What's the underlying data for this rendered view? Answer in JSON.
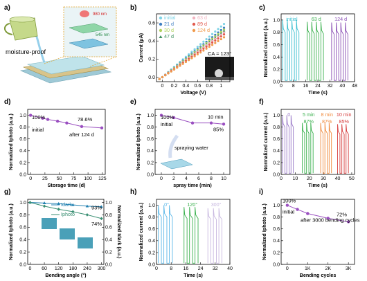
{
  "panel_a": {
    "label": "a)",
    "caption": "moisture-proof",
    "label_980": "980 nm",
    "label_545": "545 nm"
  },
  "chart_data": [
    {
      "id": "b",
      "label": "b)",
      "type": "line",
      "xlabel": "Voltage (V)",
      "ylabel": "Current (μA)",
      "xlim": [
        -0.1,
        1.15
      ],
      "ylim": [
        -0.05,
        0.7
      ],
      "xticks": [
        0.0,
        0.2,
        0.4,
        0.6,
        0.8,
        1.0
      ],
      "yticks": [
        0.0,
        0.2,
        0.4,
        0.6
      ],
      "series": [
        {
          "name": "initial",
          "color": "#7ed3e6",
          "marker": "circle",
          "slope": 0.56
        },
        {
          "name": "21 d",
          "color": "#3f7fc2",
          "marker": "circle",
          "slope": 0.52
        },
        {
          "name": "30 d",
          "color": "#b0d25e",
          "marker": "circle",
          "slope": 0.5
        },
        {
          "name": "47 d",
          "color": "#3d8f5c",
          "marker": "triangle",
          "slope": 0.485
        },
        {
          "name": "63 d",
          "color": "#f2b3c0",
          "marker": "circle",
          "slope": 0.47
        },
        {
          "name": "89 d",
          "color": "#e25a4e",
          "marker": "circle",
          "slope": 0.45
        },
        {
          "name": "124 d",
          "color": "#f09a4c",
          "marker": "circle",
          "slope": 0.42
        }
      ],
      "inset_text": "CA = 123°"
    },
    {
      "id": "c",
      "label": "c)",
      "type": "line",
      "xlabel": "Time (s)",
      "ylabel": "Normalized current (a.u.)",
      "xlim": [
        0,
        48
      ],
      "ylim": [
        0,
        1.1
      ],
      "xticks": [
        0,
        8,
        16,
        24,
        32,
        40,
        48
      ],
      "yticks": [
        0.0,
        0.2,
        0.4,
        0.6,
        0.8,
        1.0
      ],
      "groups": [
        {
          "name": "initial",
          "color": "#3bbfd0",
          "start": 1,
          "period": 3,
          "count": 4,
          "level": 1.0
        },
        {
          "name": "63 d",
          "color": "#3ab04e",
          "start": 17,
          "period": 3,
          "count": 4,
          "level": 0.97
        },
        {
          "name": "124 d",
          "color": "#8a4fb5",
          "start": 33,
          "period": 3,
          "count": 4,
          "level": 0.96
        }
      ]
    },
    {
      "id": "d",
      "label": "d)",
      "type": "line",
      "xlabel": "Storage time (d)",
      "ylabel": "Normalized Iphoto (a.u.)",
      "xlim": [
        -5,
        130
      ],
      "ylim": [
        0,
        1.1
      ],
      "xticks": [
        0,
        25,
        50,
        75,
        100,
        125
      ],
      "yticks": [
        0.0,
        0.2,
        0.4,
        0.6,
        0.8,
        1.0
      ],
      "color": "#9a4fc0",
      "x": [
        0,
        21,
        30,
        47,
        63,
        89,
        124
      ],
      "y": [
        1.0,
        0.95,
        0.93,
        0.9,
        0.87,
        0.81,
        0.786
      ],
      "annotations": [
        "100%",
        "initial",
        "78.6%",
        "after 124 d"
      ]
    },
    {
      "id": "e",
      "label": "e)",
      "type": "line",
      "xlabel": "spray time (min)",
      "ylabel": "Normalized Iphoto (a.u.)",
      "xlim": [
        -1,
        11
      ],
      "ylim": [
        0,
        1.1
      ],
      "xticks": [
        0,
        2,
        4,
        6,
        8,
        10
      ],
      "yticks": [
        0.0,
        0.2,
        0.4,
        0.6,
        0.8,
        1.0
      ],
      "color": "#9a4fc0",
      "x": [
        0,
        2,
        5,
        8,
        10
      ],
      "y": [
        1.0,
        0.96,
        0.87,
        0.87,
        0.85
      ],
      "annotations": [
        "100%",
        "initial",
        "10 min",
        "85%",
        "spraying water"
      ]
    },
    {
      "id": "f",
      "label": "f)",
      "type": "line",
      "xlabel": "Time (s)",
      "ylabel": "Normalized current (a.u.)",
      "xlim": [
        0,
        52
      ],
      "ylim": [
        0,
        1.1
      ],
      "xticks": [
        0,
        10,
        20,
        30,
        40,
        50
      ],
      "yticks": [
        0.0,
        0.2,
        0.4,
        0.6,
        0.8,
        1.0
      ],
      "groups": [
        {
          "name": "0",
          "pct": "",
          "color": "#9a7ac8",
          "start": 1,
          "period": 3,
          "count": 3,
          "level": 1.0
        },
        {
          "name": "5 min",
          "pct": "87%",
          "color": "#3ab04e",
          "start": 15,
          "period": 3,
          "count": 3,
          "level": 0.87
        },
        {
          "name": "8 min",
          "pct": "87%",
          "color": "#f08a3c",
          "start": 28,
          "period": 3,
          "count": 3,
          "level": 0.87
        },
        {
          "name": "10 min",
          "pct": "85%",
          "color": "#d63a3a",
          "start": 40,
          "period": 3,
          "count": 3,
          "level": 0.85
        }
      ]
    },
    {
      "id": "g",
      "label": "g)",
      "type": "line",
      "xlabel": "Bending angle (°)",
      "ylabel": "Normalized Iphoto (a.u.)",
      "y2label": "Normalized Idark (a.u.)",
      "xlim": [
        -10,
        310
      ],
      "ylim": [
        0,
        1.05
      ],
      "y2lim": [
        0,
        1.05
      ],
      "xticks": [
        0,
        60,
        120,
        180,
        240,
        300
      ],
      "yticks": [
        0.0,
        0.2,
        0.4,
        0.6,
        0.8,
        1.0
      ],
      "y2ticks": [
        0.0,
        0.2,
        0.4,
        0.6,
        0.8,
        1.0
      ],
      "series": [
        {
          "name": "Idark",
          "color": "#1f7fb0",
          "marker": "triangle",
          "x": [
            0,
            60,
            120,
            180,
            240,
            300
          ],
          "y": [
            1.0,
            0.99,
            0.98,
            0.96,
            0.94,
            0.93
          ],
          "axis": "right"
        },
        {
          "name": "Iphoto",
          "color": "#3a8f73",
          "marker": "diamond",
          "x": [
            0,
            60,
            120,
            180,
            240,
            300
          ],
          "y": [
            1.0,
            0.94,
            0.89,
            0.85,
            0.8,
            0.74
          ],
          "axis": "left"
        }
      ],
      "annotations": [
        "93%",
        "74%"
      ]
    },
    {
      "id": "h",
      "label": "h)",
      "type": "line",
      "xlabel": "Time (s)",
      "ylabel": "Normalized current (a.u.)",
      "xlim": [
        0,
        40
      ],
      "ylim": [
        0,
        1.1
      ],
      "xticks": [
        0,
        8,
        16,
        24,
        32,
        40
      ],
      "yticks": [
        0.0,
        0.2,
        0.4,
        0.6,
        0.8,
        1.0
      ],
      "groups": [
        {
          "name": "0°",
          "color": "#5bb8e8",
          "start": 1,
          "period": 3,
          "count": 3,
          "level": 1.0
        },
        {
          "name": "120°",
          "color": "#3ab04e",
          "start": 15,
          "period": 3,
          "count": 3,
          "level": 0.97
        },
        {
          "name": "300°",
          "color": "#c8b8e0",
          "start": 28,
          "period": 3,
          "count": 3,
          "level": 0.95
        }
      ]
    },
    {
      "id": "i",
      "label": "i)",
      "type": "line",
      "xlabel": "Bending cycles",
      "ylabel": "Normalized Iphoto (a.u.)",
      "xlim": [
        -300,
        3300
      ],
      "ylim": [
        0,
        1.1
      ],
      "xticks": [
        0,
        1000,
        2000,
        3000
      ],
      "xticklabels": [
        "0",
        "1K",
        "2K",
        "3K"
      ],
      "yticks": [
        0.0,
        0.2,
        0.4,
        0.6,
        0.8,
        1.0
      ],
      "color": "#9a4fc0",
      "x": [
        0,
        500,
        1000,
        2000,
        3000
      ],
      "y": [
        1.0,
        0.93,
        0.86,
        0.78,
        0.72
      ],
      "annotations": [
        "100%",
        "initial",
        "72%",
        "after 3000 bending cycles"
      ]
    }
  ]
}
